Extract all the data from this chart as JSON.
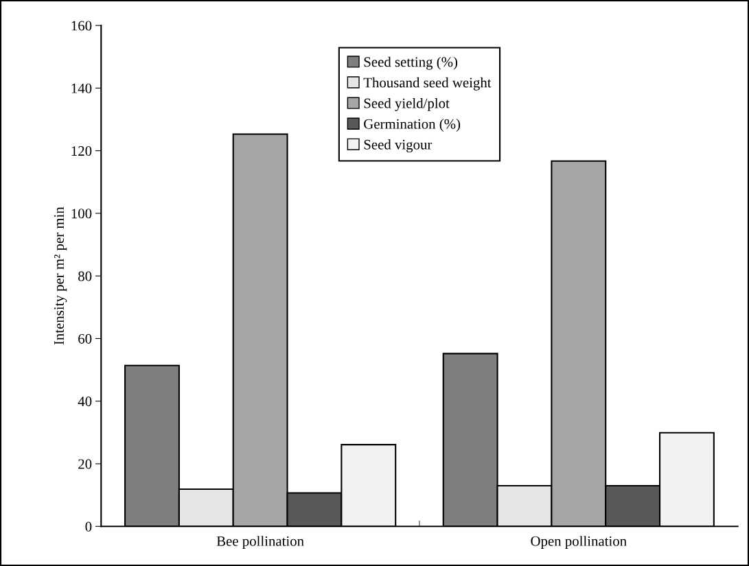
{
  "chart_data": {
    "type": "bar",
    "ylabel": "Intensity per m² per min",
    "categories": [
      "Bee pollination",
      "Open pollination"
    ],
    "series": [
      {
        "name": "Seed setting (%)",
        "color": "#7f7f7f",
        "values": [
          51.4,
          55.2
        ]
      },
      {
        "name": "Thousand seed weight",
        "color": "#e6e6e6",
        "values": [
          11.9,
          13.0
        ]
      },
      {
        "name": "Seed yield/plot",
        "color": "#a6a6a6",
        "values": [
          125.3,
          116.7
        ]
      },
      {
        "name": "Germination (%)",
        "color": "#595959",
        "values": [
          10.7,
          13.0
        ]
      },
      {
        "name": "Seed vigour",
        "color": "#f2f2f2",
        "values": [
          26.1,
          29.9
        ]
      }
    ],
    "ylim": [
      0,
      160
    ],
    "yticks": [
      0,
      20,
      40,
      60,
      80,
      100,
      120,
      140,
      160
    ],
    "grid": false,
    "legend": "top"
  }
}
